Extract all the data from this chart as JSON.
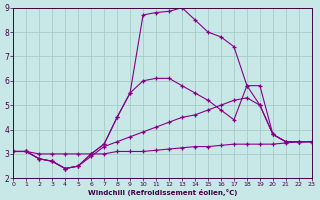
{
  "xlabel": "Windchill (Refroidissement éolien,°C)",
  "background_color": "#c8e8e8",
  "grid_color": "#a0c8c0",
  "line_color": "#880088",
  "xlim": [
    0,
    23
  ],
  "ylim": [
    2,
    9
  ],
  "xticks": [
    0,
    1,
    2,
    3,
    4,
    5,
    6,
    7,
    8,
    9,
    10,
    11,
    12,
    13,
    14,
    15,
    16,
    17,
    18,
    19,
    20,
    21,
    22,
    23
  ],
  "yticks": [
    2,
    3,
    4,
    5,
    6,
    7,
    8,
    9
  ],
  "line1": {
    "x": [
      0,
      1,
      2,
      3,
      4,
      5,
      6,
      7,
      8,
      9,
      10,
      11,
      12,
      13,
      14,
      15,
      16,
      17,
      18,
      19,
      20,
      21,
      22,
      23
    ],
    "y": [
      3.1,
      3.1,
      3.0,
      3.0,
      3.0,
      3.0,
      3.0,
      3.0,
      3.1,
      3.1,
      3.1,
      3.15,
      3.2,
      3.25,
      3.3,
      3.3,
      3.35,
      3.4,
      3.4,
      3.4,
      3.4,
      3.45,
      3.5,
      3.5
    ]
  },
  "line2": {
    "x": [
      0,
      1,
      2,
      3,
      4,
      5,
      6,
      7,
      8,
      9,
      10,
      11,
      12,
      13,
      14,
      15,
      16,
      17,
      18,
      19,
      20,
      21,
      22,
      23
    ],
    "y": [
      3.1,
      3.1,
      2.8,
      2.7,
      2.4,
      2.5,
      2.9,
      3.3,
      3.5,
      3.7,
      3.9,
      4.1,
      4.3,
      4.5,
      4.6,
      4.8,
      5.0,
      5.2,
      5.3,
      5.0,
      3.8,
      3.5,
      3.5,
      3.5
    ]
  },
  "line3": {
    "x": [
      0,
      1,
      2,
      3,
      4,
      5,
      6,
      7,
      8,
      9,
      10,
      11,
      12,
      13,
      14,
      15,
      16,
      17,
      18,
      19,
      20,
      21,
      22,
      23
    ],
    "y": [
      3.1,
      3.1,
      2.8,
      2.7,
      2.4,
      2.5,
      3.0,
      3.4,
      4.5,
      5.5,
      6.0,
      6.1,
      6.1,
      5.8,
      5.5,
      5.2,
      4.8,
      4.4,
      5.8,
      5.0,
      3.8,
      3.5,
      3.5,
      3.5
    ]
  },
  "line4": {
    "x": [
      0,
      1,
      2,
      3,
      4,
      5,
      6,
      7,
      8,
      9,
      10,
      11,
      12,
      13,
      14,
      15,
      16,
      17,
      18,
      19,
      20,
      21,
      22,
      23
    ],
    "y": [
      3.1,
      3.1,
      2.8,
      2.7,
      2.4,
      2.5,
      3.0,
      3.4,
      4.5,
      5.5,
      8.7,
      8.8,
      8.85,
      9.0,
      8.5,
      8.0,
      7.8,
      7.4,
      5.8,
      5.8,
      3.8,
      3.5,
      3.5,
      3.5
    ]
  }
}
